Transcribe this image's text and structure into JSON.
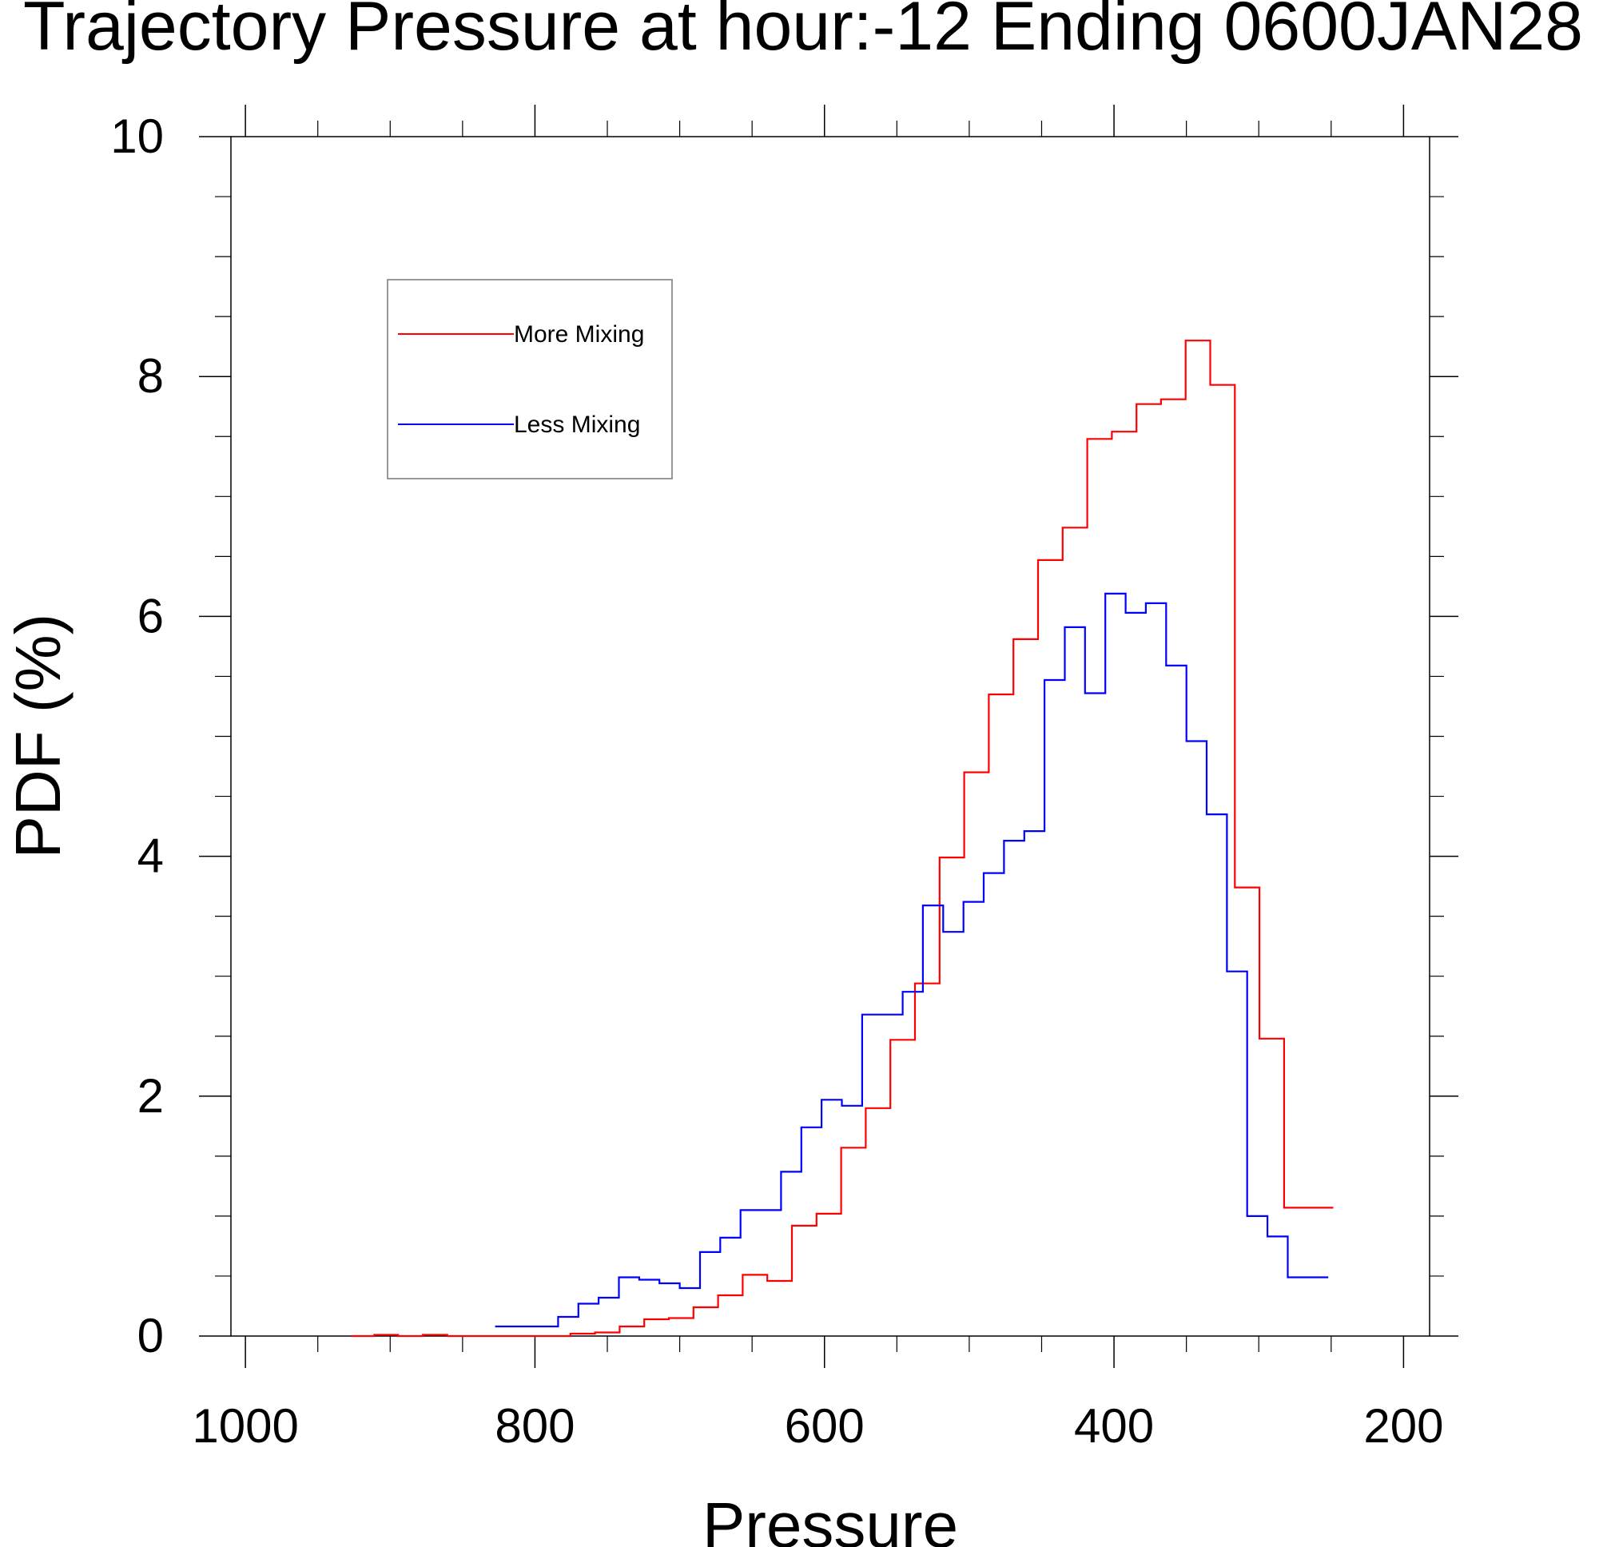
{
  "chart_data": {
    "type": "line",
    "title": "Trajectory Pressure at hour:-12 Ending 0600JAN28",
    "xlabel": "Pressure",
    "ylabel": "PDF (%)",
    "xlim": [
      1010,
      182
    ],
    "ylim": [
      0,
      10
    ],
    "x_reversed": true,
    "grid": false,
    "legend_position": "top-left",
    "x_ticks": [
      1000,
      800,
      600,
      400,
      200
    ],
    "x_tick_labels": [
      "1000",
      "800",
      "600",
      "400",
      "200"
    ],
    "y_ticks": [
      0,
      2,
      4,
      6,
      8,
      10
    ],
    "y_tick_labels": [
      "0",
      "2",
      "4",
      "6",
      "8",
      "10"
    ],
    "step": "mid",
    "series": [
      {
        "name": "More Mixing",
        "color": "#ff0000",
        "x": [
          919,
          903,
          886,
          869,
          852,
          835,
          818,
          801,
          784,
          767,
          750,
          733,
          716,
          699,
          682,
          665,
          648,
          631,
          614,
          597,
          580,
          563,
          546,
          529,
          512,
          495,
          478,
          461,
          444,
          427,
          410,
          393,
          376,
          359,
          342,
          325,
          308,
          291,
          274,
          257
        ],
        "y": [
          0.0,
          0.01,
          0.0,
          0.01,
          0.0,
          0.0,
          0.0,
          0.0,
          0.0,
          0.02,
          0.03,
          0.08,
          0.14,
          0.15,
          0.24,
          0.34,
          0.51,
          0.46,
          0.92,
          1.02,
          1.57,
          1.9,
          2.47,
          2.94,
          3.99,
          4.7,
          5.35,
          5.81,
          6.47,
          6.74,
          7.48,
          7.54,
          7.77,
          7.81,
          8.3,
          7.93,
          3.74,
          2.48,
          1.07,
          1.07
        ]
      },
      {
        "name": "Less Mixing",
        "color": "#0000ff",
        "x": [
          820,
          805,
          791,
          777,
          763,
          749,
          735,
          721,
          707,
          693,
          679,
          665,
          651,
          637,
          623,
          609,
          595,
          581,
          567,
          553,
          539,
          525,
          511,
          497,
          483,
          469,
          455,
          441,
          427,
          413,
          399,
          385,
          371,
          357,
          343,
          329,
          315,
          301,
          287,
          273,
          259
        ],
        "y": [
          0.08,
          0.08,
          0.08,
          0.16,
          0.27,
          0.32,
          0.49,
          0.47,
          0.44,
          0.4,
          0.7,
          0.82,
          1.05,
          1.05,
          1.37,
          1.74,
          1.97,
          1.92,
          2.68,
          2.68,
          2.87,
          3.59,
          3.37,
          3.62,
          3.86,
          4.13,
          4.21,
          5.47,
          5.91,
          5.36,
          6.19,
          6.03,
          6.11,
          5.59,
          4.96,
          4.35,
          3.04,
          1.0,
          0.83,
          0.49,
          0.49
        ]
      }
    ]
  }
}
